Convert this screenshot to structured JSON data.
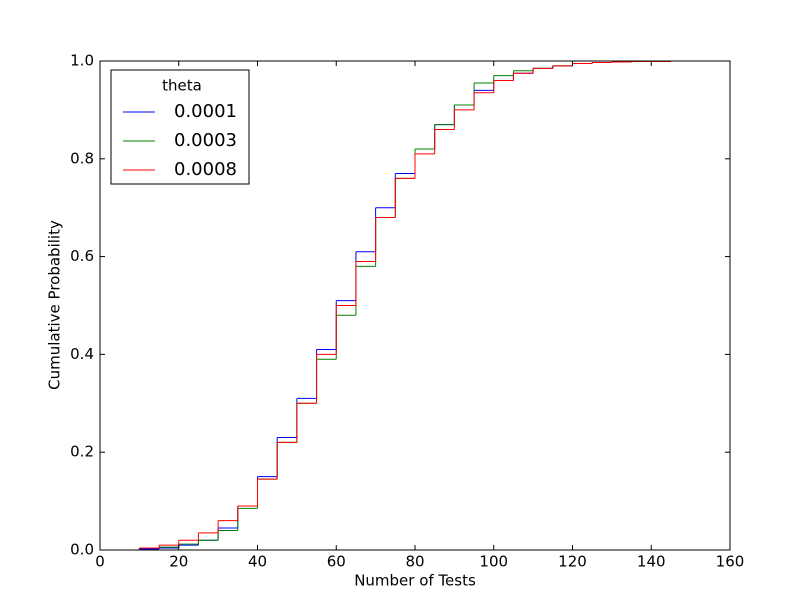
{
  "chart_data": {
    "type": "step",
    "xlabel": "Number of Tests",
    "ylabel": "Cumulative Probability",
    "legend_title": "theta",
    "legend": "upper left",
    "x": [
      0,
      5,
      10,
      15,
      20,
      25,
      30,
      35,
      40,
      45,
      50,
      55,
      60,
      65,
      70,
      75,
      80,
      85,
      90,
      95,
      100,
      105,
      110,
      115,
      120,
      125,
      130,
      135,
      140,
      145,
      150,
      155
    ],
    "series": [
      {
        "name": "0.0001",
        "color": "#0000ff",
        "values": [
          0,
          0,
          0.002,
          0.004,
          0.01,
          0.02,
          0.045,
          0.09,
          0.15,
          0.23,
          0.31,
          0.41,
          0.51,
          0.61,
          0.7,
          0.77,
          0.82,
          0.87,
          0.91,
          0.94,
          0.96,
          0.975,
          0.985,
          0.99,
          0.995,
          0.997,
          0.998,
          0.999,
          0.999,
          1.0,
          1.0,
          1.0
        ]
      },
      {
        "name": "0.0003",
        "color": "#008000",
        "values": [
          0,
          0,
          0.004,
          0.006,
          0.012,
          0.02,
          0.04,
          0.085,
          0.145,
          0.22,
          0.3,
          0.39,
          0.48,
          0.58,
          0.68,
          0.76,
          0.82,
          0.87,
          0.91,
          0.955,
          0.97,
          0.98,
          0.985,
          0.99,
          0.995,
          0.997,
          0.998,
          0.999,
          0.999,
          1.0,
          1.0,
          1.0
        ]
      },
      {
        "name": "0.0008",
        "color": "#ff0000",
        "values": [
          0,
          0,
          0.004,
          0.01,
          0.02,
          0.035,
          0.06,
          0.09,
          0.145,
          0.22,
          0.3,
          0.4,
          0.5,
          0.59,
          0.68,
          0.76,
          0.81,
          0.86,
          0.9,
          0.935,
          0.96,
          0.975,
          0.985,
          0.99,
          0.995,
          0.997,
          0.998,
          0.999,
          0.999,
          1.0,
          1.0,
          1.0
        ]
      }
    ],
    "xlim": [
      0,
      160
    ],
    "ylim": [
      0,
      1.0
    ],
    "xticks": [
      0,
      20,
      40,
      60,
      80,
      100,
      120,
      140,
      160
    ],
    "yticks": [
      {
        "value": 0,
        "label": "0.0"
      },
      0.2,
      0.4,
      0.6,
      0.8,
      {
        "value": 1.0,
        "label": "1.0"
      }
    ],
    "grid": false
  }
}
